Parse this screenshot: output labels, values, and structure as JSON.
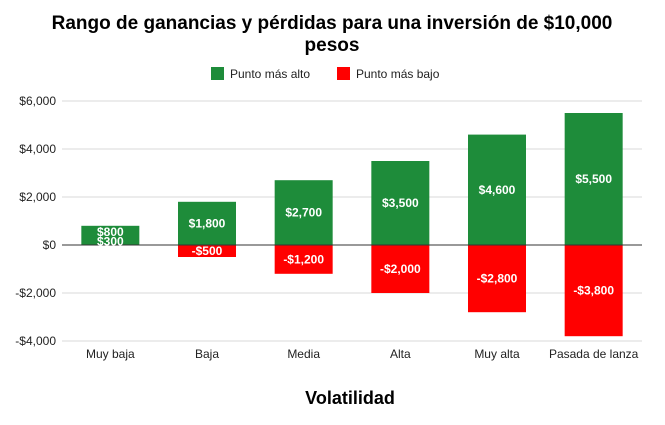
{
  "chart_data": {
    "type": "bar",
    "title_line1": "Rango de ganancias y pérdidas para una inversión de $10,000",
    "title_line2": "pesos",
    "xlabel": "Volatilidad",
    "ylabel": "",
    "categories": [
      "Muy baja",
      "Baja",
      "Media",
      "Alta",
      "Muy alta",
      "Pasada de lanza"
    ],
    "series": [
      {
        "name": "Punto más alto",
        "color": "#1e8c3a",
        "values": [
          800,
          1800,
          2700,
          3500,
          4600,
          5500
        ],
        "labels": [
          "$800",
          "$1,800",
          "$2,700",
          "$3,500",
          "$4,600",
          "$5,500"
        ]
      },
      {
        "name": "Punto más bajo",
        "color": "#ff0000",
        "values": [
          300,
          -500,
          -1200,
          -2000,
          -2800,
          -3800
        ],
        "labels": [
          "$300",
          "-$500",
          "-$1,200",
          "-$2,000",
          "-$2,800",
          "-$3,800"
        ]
      }
    ],
    "ylim": [
      -4000,
      6000
    ],
    "yticks": [
      6000,
      4000,
      2000,
      0,
      -2000,
      -4000
    ],
    "ytick_labels": [
      "$6,000",
      "$4,000",
      "$2,000",
      "$0",
      "-$2,000",
      "-$4,000"
    ],
    "grid": true,
    "legend_position": "top"
  }
}
